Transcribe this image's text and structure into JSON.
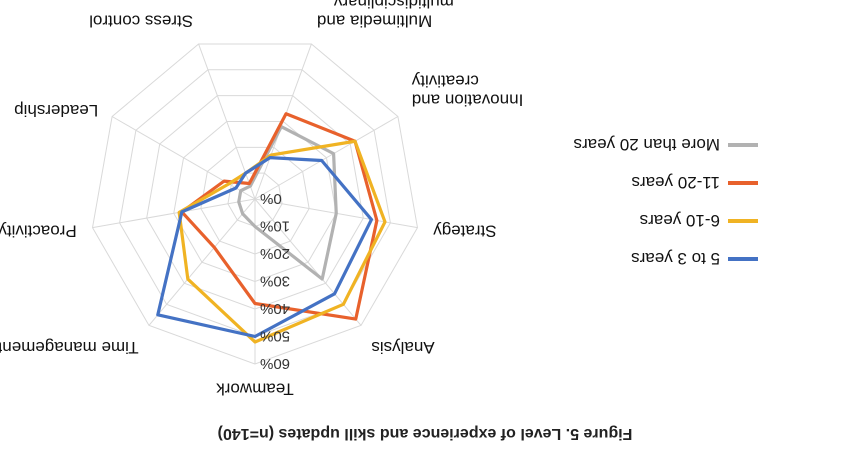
{
  "caption": "Figure 5. Level of experience and skill updates (n=140)",
  "chart_data": {
    "type": "radar",
    "title": "",
    "axes": [
      "Teamwork",
      "Time management",
      "Proactivity",
      "Leadership",
      "Stress control",
      "Multimedia and multidisciplinary…",
      "Innovation and creativity",
      "Strategy",
      "Analysis"
    ],
    "axis_labels": [
      {
        "lines": [
          "Teamwork"
        ]
      },
      {
        "lines": [
          "Time management"
        ]
      },
      {
        "lines": [
          "Proactivity"
        ]
      },
      {
        "lines": [
          "Leadership"
        ]
      },
      {
        "lines": [
          "Stress control"
        ]
      },
      {
        "lines": [
          "Multimedia and",
          "multidisciplinary…"
        ]
      },
      {
        "lines": [
          "Innovation and",
          "creativity"
        ]
      },
      {
        "lines": [
          "Strategy"
        ]
      },
      {
        "lines": [
          "Analysis"
        ]
      }
    ],
    "ticks": [
      "0%",
      "10%",
      "20%",
      "30%",
      "40%",
      "50%",
      "60%"
    ],
    "range": [
      0,
      60
    ],
    "grid": true,
    "legend_position": "right",
    "series": [
      {
        "name": "5 to 3 years",
        "color": "#4472C4",
        "values": [
          50,
          55,
          27,
          8,
          10,
          16,
          28,
          43,
          45
        ]
      },
      {
        "name": "6-10 years",
        "color": "#F0B323",
        "values": [
          52,
          38,
          28,
          11,
          10,
          17,
          42,
          48,
          50
        ]
      },
      {
        "name": "11-20 years",
        "color": "#E8612C",
        "values": [
          38,
          23,
          27,
          13,
          6,
          33,
          42,
          45,
          57
        ]
      },
      {
        "name": "More than 20 years",
        "color": "#B2B2B2",
        "values": [
          10,
          7,
          6,
          6,
          5,
          28,
          33,
          30,
          38
        ]
      }
    ]
  }
}
